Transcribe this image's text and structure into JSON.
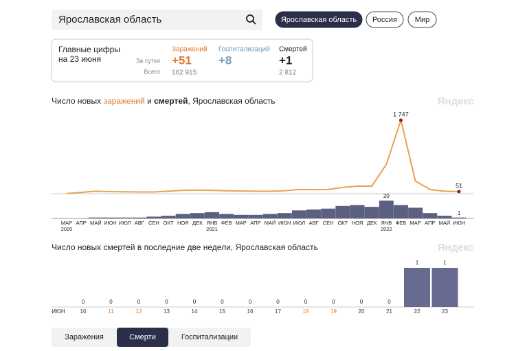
{
  "search": {
    "query": "Ярославская область"
  },
  "regions": [
    "Ярославская область",
    "Россия",
    "Мир"
  ],
  "active_region": 0,
  "summary": {
    "title_lines": [
      "Главные цифры",
      "на 23 июня"
    ],
    "row_labels": [
      "За сутки",
      "Всего"
    ],
    "columns": [
      {
        "name": "Заражений",
        "color": "#e07b2c",
        "day": "+51",
        "total": "162 915"
      },
      {
        "name": "Госпитализаций",
        "color": "#6f9cc0",
        "day": "+8"
      },
      {
        "name": "Смертей",
        "color": "#222222",
        "day": "+1",
        "total": "2 812"
      }
    ]
  },
  "watermark": "Яндекс",
  "chart_data": [
    {
      "type": "line",
      "title_parts": [
        {
          "text": "Число новых "
        },
        {
          "text": "заражений",
          "color": "#e07b2c"
        },
        {
          "text": " и "
        },
        {
          "text": "смертей",
          "bold": true
        },
        {
          "text": ", Ярославская область"
        }
      ],
      "categories": [
        "МАР",
        "АПР",
        "МАЙ",
        "ИЮН",
        "ИЮЛ",
        "АВГ",
        "СЕН",
        "ОКТ",
        "НОЯ",
        "ДЕК",
        "ЯНВ",
        "ФЕВ",
        "МАР",
        "АПР",
        "МАЙ",
        "ИЮН",
        "ИЮЛ",
        "АВГ",
        "СЕН",
        "ОКТ",
        "НОЯ",
        "ДЕК",
        "ЯНВ",
        "ФЕВ",
        "МАР",
        "АПР",
        "МАЙ",
        "ИЮН"
      ],
      "years": [
        "2020",
        null,
        null,
        null,
        null,
        null,
        null,
        null,
        null,
        null,
        "2021",
        null,
        null,
        null,
        null,
        null,
        null,
        null,
        null,
        null,
        null,
        null,
        "2022",
        null,
        null,
        null,
        null,
        null
      ],
      "series": [
        {
          "color": "#e8a24e",
          "values": [
            5,
            30,
            60,
            50,
            45,
            40,
            40,
            60,
            80,
            85,
            80,
            70,
            65,
            60,
            60,
            70,
            100,
            95,
            100,
            150,
            180,
            180,
            700,
            1747,
            300,
            100,
            60,
            51
          ],
          "value_labels": [
            null,
            null,
            null,
            null,
            null,
            null,
            null,
            null,
            null,
            null,
            null,
            null,
            null,
            null,
            null,
            null,
            null,
            null,
            null,
            null,
            null,
            null,
            null,
            "1 747",
            null,
            null,
            null,
            "51"
          ]
        },
        {
          "color": "#5c6080",
          "values": [
            0,
            0,
            1,
            1,
            1,
            1,
            2,
            3,
            5,
            6,
            7,
            5,
            4,
            4,
            5,
            6,
            9,
            10,
            11,
            14,
            15,
            13,
            20,
            15,
            12,
            6,
            3,
            1
          ],
          "value_labels": [
            null,
            null,
            null,
            null,
            null,
            null,
            null,
            null,
            null,
            null,
            null,
            null,
            null,
            null,
            null,
            null,
            null,
            null,
            null,
            null,
            null,
            null,
            "20",
            null,
            null,
            null,
            null,
            "1"
          ]
        }
      ]
    },
    {
      "type": "bar",
      "title": "Число новых смертей в последние две недели, Ярославская область",
      "month_label": "ИЮН",
      "color": "#666b8f",
      "categories": [
        "10",
        "11",
        "12",
        "13",
        "14",
        "15",
        "16",
        "17",
        "18",
        "19",
        "20",
        "21",
        "22",
        "23"
      ],
      "category_colors": [
        "#333333",
        "#e07b2c",
        "#e07b2c",
        "#333333",
        "#333333",
        "#333333",
        "#333333",
        "#333333",
        "#e07b2c",
        "#e07b2c",
        "#333333",
        "#333333",
        "#333333",
        "#333333"
      ],
      "values": [
        0,
        0,
        0,
        0,
        0,
        0,
        0,
        0,
        0,
        0,
        0,
        0,
        1,
        1
      ]
    }
  ],
  "tabs": [
    "Заражения",
    "Смерти",
    "Госпитализации"
  ],
  "active_tab": 1
}
